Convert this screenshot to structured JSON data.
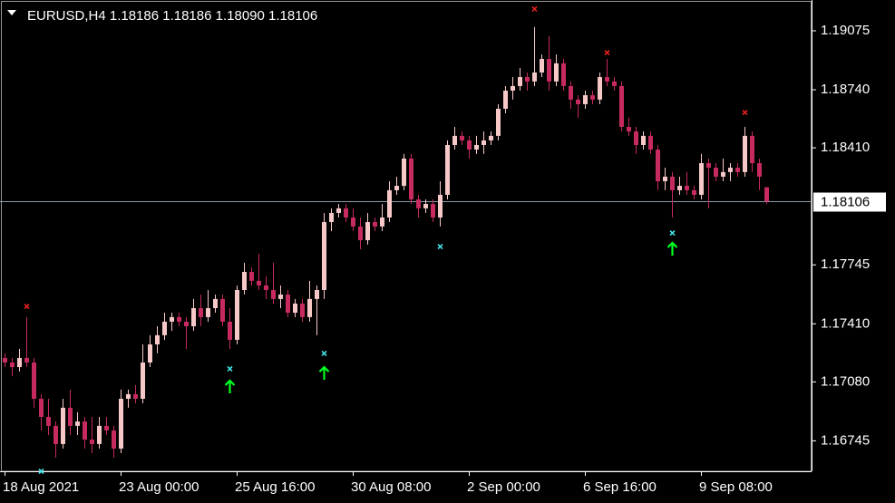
{
  "chart_data": {
    "type": "candlestick",
    "title": "EURUSD,H4  1.18186 1.18186 1.18090 1.18106",
    "up_color": "#f6c8c8",
    "down_color": "#c62a5e",
    "ylim": [
      1.16572,
      1.1925
    ],
    "yticks": [
      1.19075,
      {
        "value": 1.1874,
        "label": "1.18740"
      },
      {
        "value": 1.1841,
        "label": "1.18410"
      },
      1.17745,
      {
        "value": 1.1741,
        "label": "1.17410"
      },
      {
        "value": 1.1708,
        "label": "1.17080"
      },
      1.16745
    ],
    "current_price": 1.18106,
    "categories": [
      "18 Aug 2021",
      null,
      null,
      null,
      null,
      null,
      null,
      null,
      null,
      null,
      null,
      null,
      null,
      null,
      null,
      null,
      "23 Aug 00:00",
      null,
      null,
      null,
      null,
      null,
      null,
      null,
      null,
      null,
      null,
      null,
      null,
      null,
      null,
      null,
      "25 Aug 16:00",
      null,
      null,
      null,
      null,
      null,
      null,
      null,
      null,
      null,
      null,
      null,
      null,
      null,
      null,
      null,
      "30 Aug 08:00",
      null,
      null,
      null,
      null,
      null,
      null,
      null,
      null,
      null,
      null,
      null,
      null,
      null,
      null,
      null,
      "2 Sep 00:00",
      null,
      null,
      null,
      null,
      null,
      null,
      null,
      null,
      null,
      null,
      null,
      null,
      null,
      null,
      null,
      "6 Sep 16:00",
      null,
      null,
      null,
      null,
      null,
      null,
      null,
      null,
      null,
      null,
      null,
      null,
      null,
      null,
      null,
      "9 Sep 08:00",
      null,
      null,
      null,
      null,
      null,
      null,
      null,
      null,
      null
    ],
    "candles": [
      [
        1.17216,
        1.17242,
        1.17164,
        1.1719
      ],
      [
        1.1719,
        1.17216,
        1.17113,
        1.17164
      ],
      [
        1.17164,
        1.17267,
        1.17139,
        1.17216
      ],
      [
        1.17216,
        1.17448,
        1.17164,
        1.1719
      ],
      [
        1.1719,
        1.17216,
        1.16933,
        1.16984
      ],
      [
        1.16984,
        1.1701,
        1.16804,
        1.16881
      ],
      [
        1.16881,
        1.16984,
        1.16778,
        1.1683
      ],
      [
        1.1683,
        1.16855,
        1.16649,
        1.16727
      ],
      [
        1.16727,
        1.16984,
        1.16701,
        1.16933
      ],
      [
        1.16933,
        1.17036,
        1.16778,
        1.1683
      ],
      [
        1.1683,
        1.16907,
        1.16778,
        1.16855
      ],
      [
        1.16855,
        1.16881,
        1.16701,
        1.16752
      ],
      [
        1.16752,
        1.16881,
        1.16675,
        1.16727
      ],
      [
        1.16727,
        1.16881,
        1.16701,
        1.1683
      ],
      [
        1.1683,
        1.16881,
        1.16778,
        1.16804
      ],
      [
        1.16804,
        1.1683,
        1.16649,
        1.16701
      ],
      [
        1.16701,
        1.17036,
        1.16675,
        1.16984
      ],
      [
        1.16984,
        1.17036,
        1.16933,
        1.1701
      ],
      [
        1.1701,
        1.17061,
        1.16958,
        1.16984
      ],
      [
        1.16984,
        1.17293,
        1.16958,
        1.1719
      ],
      [
        1.1719,
        1.17345,
        1.17164,
        1.17293
      ],
      [
        1.17293,
        1.17396,
        1.17242,
        1.17345
      ],
      [
        1.17345,
        1.17473,
        1.17319,
        1.17422
      ],
      [
        1.17422,
        1.17473,
        1.1737,
        1.17448
      ],
      [
        1.17448,
        1.17473,
        1.17396,
        1.17422
      ],
      [
        1.17422,
        1.17448,
        1.17267,
        1.17396
      ],
      [
        1.17396,
        1.17551,
        1.1737,
        1.17499
      ],
      [
        1.17499,
        1.17576,
        1.17396,
        1.17448
      ],
      [
        1.17448,
        1.17602,
        1.17422,
        1.17499
      ],
      [
        1.17499,
        1.17576,
        1.17473,
        1.17551
      ],
      [
        1.17551,
        1.17576,
        1.17396,
        1.17422
      ],
      [
        1.17422,
        1.17499,
        1.17267,
        1.17319
      ],
      [
        1.17319,
        1.17628,
        1.17293,
        1.17602
      ],
      [
        1.17602,
        1.17757,
        1.17576,
        1.17705
      ],
      [
        1.17705,
        1.17731,
        1.17628,
        1.17654
      ],
      [
        1.17654,
        1.17808,
        1.17602,
        1.17628
      ],
      [
        1.17628,
        1.17679,
        1.17551,
        1.17602
      ],
      [
        1.17602,
        1.17757,
        1.17525,
        1.17551
      ],
      [
        1.17551,
        1.17628,
        1.17499,
        1.17576
      ],
      [
        1.17576,
        1.17602,
        1.17448,
        1.17473
      ],
      [
        1.17473,
        1.17551,
        1.17448,
        1.17525
      ],
      [
        1.17525,
        1.17551,
        1.17422,
        1.17448
      ],
      [
        1.17448,
        1.17654,
        1.17422,
        1.17551
      ],
      [
        1.17551,
        1.17628,
        1.17345,
        1.17602
      ],
      [
        1.17602,
        1.1804,
        1.17551,
        1.17988
      ],
      [
        1.17988,
        1.18066,
        1.17937,
        1.1804
      ],
      [
        1.1804,
        1.18091,
        1.18014,
        1.18066
      ],
      [
        1.18066,
        1.18091,
        1.17988,
        1.18014
      ],
      [
        1.18014,
        1.18066,
        1.17937,
        1.17963
      ],
      [
        1.17963,
        1.18014,
        1.17834,
        1.17885
      ],
      [
        1.17885,
        1.1804,
        1.1786,
        1.17988
      ],
      [
        1.17988,
        1.18014,
        1.17937,
        1.17963
      ],
      [
        1.17963,
        1.18091,
        1.17937,
        1.18014
      ],
      [
        1.18014,
        1.1822,
        1.17988,
        1.18169
      ],
      [
        1.18169,
        1.18246,
        1.18143,
        1.18194
      ],
      [
        1.18194,
        1.18375,
        1.18169,
        1.18349
      ],
      [
        1.18349,
        1.18375,
        1.18091,
        1.18117
      ],
      [
        1.18117,
        1.18143,
        1.18014,
        1.18066
      ],
      [
        1.18066,
        1.18117,
        1.1804,
        1.18091
      ],
      [
        1.18091,
        1.18117,
        1.17988,
        1.18014
      ],
      [
        1.18014,
        1.1822,
        1.17963,
        1.18143
      ],
      [
        1.18143,
        1.18452,
        1.18117,
        1.18426
      ],
      [
        1.18426,
        1.18529,
        1.184,
        1.18478
      ],
      [
        1.18478,
        1.18503,
        1.18426,
        1.18452
      ],
      [
        1.18452,
        1.18478,
        1.18349,
        1.184
      ],
      [
        1.184,
        1.18478,
        1.18375,
        1.18426
      ],
      [
        1.18426,
        1.18503,
        1.18375,
        1.18452
      ],
      [
        1.18452,
        1.18503,
        1.18426,
        1.18478
      ],
      [
        1.18478,
        1.18658,
        1.18452,
        1.18632
      ],
      [
        1.18632,
        1.18761,
        1.18606,
        1.18735
      ],
      [
        1.18735,
        1.18812,
        1.18684,
        1.18761
      ],
      [
        1.18761,
        1.18864,
        1.18735,
        1.18812
      ],
      [
        1.18812,
        1.18838,
        1.18735,
        1.18787
      ],
      [
        1.18787,
        1.19096,
        1.18761,
        1.18838
      ],
      [
        1.18838,
        1.18941,
        1.18812,
        1.18915
      ],
      [
        1.18915,
        1.19044,
        1.18735,
        1.18787
      ],
      [
        1.18787,
        1.18941,
        1.18761,
        1.1889
      ],
      [
        1.1889,
        1.18915,
        1.18735,
        1.18761
      ],
      [
        1.18761,
        1.18787,
        1.18632,
        1.18684
      ],
      [
        1.18684,
        1.18709,
        1.18581,
        1.18658
      ],
      [
        1.18658,
        1.18735,
        1.18632,
        1.18709
      ],
      [
        1.18709,
        1.18735,
        1.18658,
        1.18684
      ],
      [
        1.18684,
        1.18838,
        1.18658,
        1.18812
      ],
      [
        1.18812,
        1.18915,
        1.18761,
        1.18787
      ],
      [
        1.18787,
        1.18812,
        1.18735,
        1.18761
      ],
      [
        1.18761,
        1.18787,
        1.18503,
        1.18529
      ],
      [
        1.18529,
        1.18581,
        1.18478,
        1.18503
      ],
      [
        1.18503,
        1.18529,
        1.18375,
        1.18426
      ],
      [
        1.18426,
        1.18503,
        1.184,
        1.18478
      ],
      [
        1.18478,
        1.18503,
        1.18375,
        1.184
      ],
      [
        1.184,
        1.18426,
        1.18169,
        1.1822
      ],
      [
        1.1822,
        1.18297,
        1.18169,
        1.18246
      ],
      [
        1.18246,
        1.18272,
        1.18014,
        1.18169
      ],
      [
        1.18169,
        1.18246,
        1.18143,
        1.18194
      ],
      [
        1.18194,
        1.18272,
        1.18143,
        1.18169
      ],
      [
        1.18169,
        1.18194,
        1.18117,
        1.18143
      ],
      [
        1.18143,
        1.18375,
        1.18117,
        1.18323
      ],
      [
        1.18323,
        1.18349,
        1.18066,
        1.18297
      ],
      [
        1.18297,
        1.18323,
        1.1822,
        1.18246
      ],
      [
        1.18246,
        1.18349,
        1.1822,
        1.18272
      ],
      [
        1.18272,
        1.18323,
        1.1822,
        1.18297
      ],
      [
        1.18297,
        1.18323,
        1.18246,
        1.18272
      ],
      [
        1.18272,
        1.18529,
        1.18246,
        1.18478
      ],
      [
        1.18478,
        1.18503,
        1.18272,
        1.18323
      ],
      [
        1.18323,
        1.18349,
        1.18169,
        1.18246
      ],
      [
        1.18186,
        1.18186,
        1.1809,
        1.18106
      ]
    ],
    "sell_signals": {
      "color": "#e8221c",
      "points": [
        {
          "bar": 3,
          "price": 1.17509
        },
        {
          "bar": 73,
          "price": 1.19199
        },
        {
          "bar": 83,
          "price": 1.18951
        },
        {
          "bar": 102,
          "price": 1.18611
        }
      ]
    },
    "buy_signals": {
      "color": "#44e4e8",
      "points": [
        {
          "bar": 5,
          "price": 1.16572
        },
        {
          "bar": 31,
          "price": 1.17154
        },
        {
          "bar": 44,
          "price": 1.17242
        },
        {
          "bar": 60,
          "price": 1.17849
        },
        {
          "bar": 92,
          "price": 1.17926
        }
      ]
    },
    "buy_arrows": {
      "color": "#00ff22",
      "points": [
        {
          "bar": 31,
          "price": 1.17051
        },
        {
          "bar": 44,
          "price": 1.17128
        },
        {
          "bar": 92,
          "price": 1.17834
        }
      ]
    }
  }
}
